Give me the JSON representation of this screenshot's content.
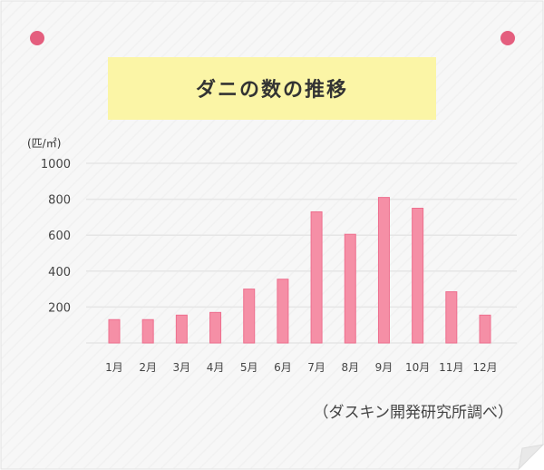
{
  "colors": {
    "card_background": "#f7f7f7",
    "card_border": "#e2e2e2",
    "title_band": "#fbf5a6",
    "bar_fill": "#f58fa6",
    "bar_stroke": "#ee6f8e",
    "pin": "#e45e7e",
    "gridline": "#e6e6e6",
    "axis_text": "#444444"
  },
  "chart_data": {
    "type": "bar",
    "title": "ダニの数の推移",
    "ylabel": "(匹/㎡)",
    "xlabel": "",
    "categories": [
      "1月",
      "2月",
      "3月",
      "4月",
      "5月",
      "6月",
      "7月",
      "8月",
      "9月",
      "10月",
      "11月",
      "12月"
    ],
    "values": [
      130,
      130,
      155,
      170,
      300,
      355,
      730,
      605,
      810,
      750,
      285,
      155
    ],
    "ylim": [
      0,
      1000
    ],
    "yticks": [
      200,
      400,
      600,
      800,
      1000
    ],
    "grid": true,
    "legend": "none",
    "source": "（ダスキン開発研究所調べ）"
  }
}
